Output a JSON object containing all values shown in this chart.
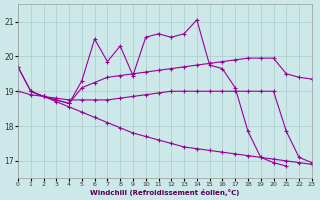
{
  "xlabel": "Windchill (Refroidissement éolien,°C)",
  "background_color": "#cce8e8",
  "grid_color": "#aacccc",
  "line_color": "#990099",
  "xlim": [
    0,
    23
  ],
  "ylim": [
    16.5,
    21.5
  ],
  "yticks": [
    17,
    18,
    19,
    20,
    21
  ],
  "xticks": [
    0,
    1,
    2,
    3,
    4,
    5,
    6,
    7,
    8,
    9,
    10,
    11,
    12,
    13,
    14,
    15,
    16,
    17,
    18,
    19,
    20,
    21,
    22,
    23
  ],
  "hours": [
    0,
    1,
    2,
    3,
    4,
    5,
    6,
    7,
    8,
    9,
    10,
    11,
    12,
    13,
    14,
    15,
    16,
    17,
    18,
    19,
    20,
    21,
    22,
    23
  ],
  "lineA_x": [
    0,
    1,
    2,
    3,
    4,
    5,
    6,
    7,
    8,
    9,
    10,
    11,
    12,
    13,
    14,
    15,
    16,
    17,
    18,
    19,
    20,
    21,
    22,
    23
  ],
  "lineA_y": [
    19.7,
    19.0,
    18.85,
    18.75,
    18.65,
    19.3,
    20.5,
    19.85,
    20.3,
    19.45,
    20.55,
    20.65,
    20.55,
    20.65,
    21.05,
    19.75,
    19.65,
    19.1,
    17.85,
    17.1,
    16.95,
    16.85,
    null,
    null
  ],
  "lineB_x": [
    0,
    1,
    2,
    3,
    4,
    5,
    6,
    7,
    8,
    9,
    10,
    11,
    12,
    13,
    14,
    15,
    16,
    17,
    18,
    19,
    20,
    21,
    22,
    23
  ],
  "lineB_y": [
    19.7,
    19.0,
    18.85,
    18.75,
    18.65,
    19.1,
    19.25,
    19.4,
    19.45,
    19.5,
    19.55,
    19.6,
    19.65,
    19.7,
    19.75,
    19.8,
    19.85,
    19.9,
    19.95,
    19.95,
    19.95,
    19.5,
    19.4,
    19.35
  ],
  "lineC_x": [
    0,
    1,
    2,
    3,
    4,
    5,
    6,
    7,
    8,
    9,
    10,
    11,
    12,
    13,
    14,
    15,
    16,
    17,
    18,
    19,
    20,
    21,
    22,
    23
  ],
  "lineC_y": [
    19.0,
    18.9,
    18.85,
    18.8,
    18.75,
    18.75,
    18.75,
    18.75,
    18.8,
    18.85,
    18.9,
    18.95,
    19.0,
    19.0,
    19.0,
    19.0,
    19.0,
    19.0,
    19.0,
    19.0,
    19.0,
    17.85,
    17.1,
    16.95
  ],
  "lineD_x": [
    1,
    2,
    3,
    4,
    5,
    6,
    7,
    8,
    9,
    10,
    11,
    12,
    13,
    14,
    15,
    16,
    17,
    18,
    19,
    20,
    21,
    22,
    23
  ],
  "lineD_y": [
    19.0,
    18.85,
    18.7,
    18.55,
    18.4,
    18.25,
    18.1,
    17.95,
    17.8,
    17.7,
    17.6,
    17.5,
    17.4,
    17.35,
    17.3,
    17.25,
    17.2,
    17.15,
    17.1,
    17.05,
    17.0,
    16.95,
    16.9
  ]
}
